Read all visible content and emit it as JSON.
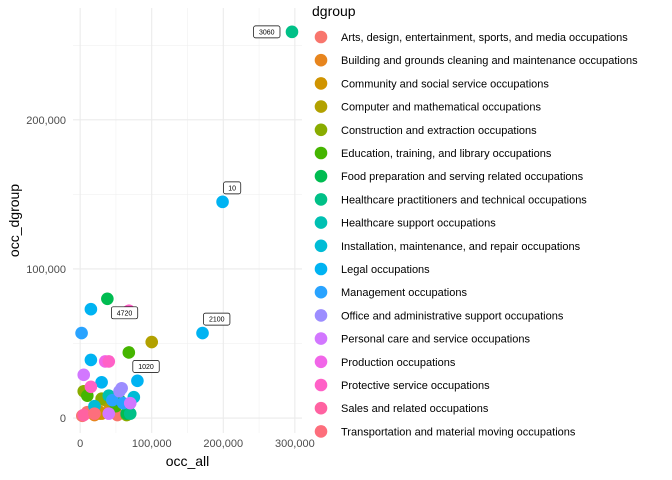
{
  "chart_data": {
    "type": "scatter",
    "xlabel": "occ_all",
    "ylabel": "occ_dgroup",
    "xlim": [
      -10000,
      310000
    ],
    "ylim": [
      -10000,
      275000
    ],
    "x_ticks": [
      0,
      100000,
      200000,
      300000
    ],
    "x_tick_labels": [
      "0",
      "100,000",
      "200,000",
      "300,000"
    ],
    "y_ticks": [
      0,
      100000,
      200000
    ],
    "y_tick_labels": [
      "0",
      "100,000",
      "200,000"
    ],
    "grid": true,
    "legend_title": "dgroup",
    "legend_position": "right",
    "series": [
      {
        "name": "Arts, design, entertainment, sports, and media occupations",
        "color": "#F8766D",
        "points": [
          [
            27000,
            3000
          ],
          [
            3000,
            1500
          ],
          [
            10000,
            4000
          ],
          [
            52000,
            2000
          ]
        ]
      },
      {
        "name": "Building and grounds cleaning and maintenance occupations",
        "color": "#E7851E",
        "points": [
          [
            20000,
            2000
          ],
          [
            40000,
            5000
          ]
        ]
      },
      {
        "name": "Community and social service occupations",
        "color": "#D09400",
        "points": [
          [
            25000,
            5000
          ],
          [
            30000,
            3000
          ]
        ]
      },
      {
        "name": "Computer and mathematical occupations",
        "color": "#B2A100",
        "points": [
          [
            100000,
            51000
          ],
          [
            35000,
            12000
          ],
          [
            45000,
            10000
          ]
        ]
      },
      {
        "name": "Construction and extraction occupations",
        "color": "#89AC00",
        "points": [
          [
            5000,
            18000
          ],
          [
            30000,
            13000
          ],
          [
            65000,
            2000
          ]
        ]
      },
      {
        "name": "Education, training, and library occupations",
        "color": "#45B500",
        "points": [
          [
            68000,
            44000
          ],
          [
            10000,
            15000
          ],
          [
            50000,
            8000
          ]
        ]
      },
      {
        "name": "Food preparation and serving related occupations",
        "color": "#00BC51",
        "points": [
          [
            38000,
            80000
          ],
          [
            65000,
            3000
          ],
          [
            55000,
            12000
          ]
        ]
      },
      {
        "name": "Healthcare practitioners and technical occupations",
        "color": "#00C087",
        "points": [
          [
            296000,
            259000
          ],
          [
            70000,
            3000
          ]
        ]
      },
      {
        "name": "Healthcare support occupations",
        "color": "#00C0B2",
        "points": [
          [
            40000,
            15000
          ]
        ]
      },
      {
        "name": "Installation, maintenance, and repair occupations",
        "color": "#00BCD6",
        "points": [
          [
            75000,
            14000
          ],
          [
            20000,
            8000
          ]
        ]
      },
      {
        "name": "Legal occupations",
        "color": "#00B3F2",
        "points": [
          [
            199000,
            145000
          ],
          [
            171000,
            57000
          ],
          [
            80000,
            25000
          ],
          [
            15000,
            73000
          ],
          [
            30000,
            24000
          ],
          [
            15000,
            39000
          ]
        ]
      },
      {
        "name": "Management occupations",
        "color": "#29A3FF",
        "points": [
          [
            2000,
            57000
          ],
          [
            45000,
            12000
          ],
          [
            60000,
            10000
          ]
        ]
      },
      {
        "name": "Office and administrative support occupations",
        "color": "#9C8DFF",
        "points": [
          [
            55000,
            18000
          ],
          [
            58000,
            20000
          ]
        ]
      },
      {
        "name": "Personal care and service occupations",
        "color": "#D277FF",
        "points": [
          [
            5000,
            29000
          ],
          [
            70000,
            10000
          ],
          [
            40000,
            3000
          ]
        ]
      },
      {
        "name": "Production occupations",
        "color": "#F166E8",
        "points": [
          [
            35000,
            38000
          ]
        ]
      },
      {
        "name": "Protective service occupations",
        "color": "#FF61C7",
        "points": [
          [
            68000,
            72000
          ],
          [
            15000,
            21000
          ],
          [
            40000,
            38000
          ]
        ]
      },
      {
        "name": "Sales and related occupations",
        "color": "#FF62A1",
        "points": [
          [
            5000,
            2000
          ]
        ]
      },
      {
        "name": "Transportation and material moving occupations",
        "color": "#FD6E7C",
        "points": [
          [
            20000,
            3000
          ]
        ]
      }
    ],
    "annotations": [
      {
        "text": "3060",
        "x": 296000,
        "y": 259000,
        "anchor": "left"
      },
      {
        "text": "10",
        "x": 199000,
        "y": 145000,
        "anchor": "above"
      },
      {
        "text": "2100",
        "x": 171000,
        "y": 57000,
        "anchor": "above"
      },
      {
        "text": "4720",
        "x": 38000,
        "y": 80000,
        "anchor": "below-right"
      },
      {
        "text": "1020",
        "x": 68000,
        "y": 44000,
        "anchor": "below-right"
      }
    ]
  }
}
